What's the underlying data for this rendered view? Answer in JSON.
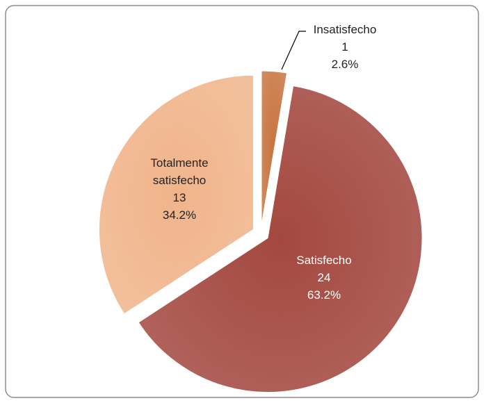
{
  "chart_data": {
    "type": "pie",
    "categories": [
      "Insatisfecho",
      "Satisfecho",
      "Totalmente satisfecho"
    ],
    "values": [
      1,
      24,
      13
    ],
    "value_labels": [
      "2.6%",
      "63.2%",
      "34.2%"
    ],
    "colors": [
      "#c8743f",
      "#a3483f",
      "#f0b48a"
    ]
  }
}
